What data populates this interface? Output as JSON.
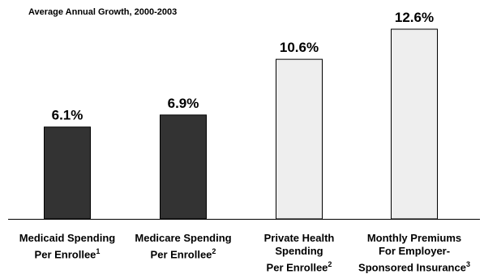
{
  "chart_data": {
    "type": "bar",
    "subtitle": "Average Annual Growth, 2000-2003",
    "categories": [
      {
        "lines": [
          "Medicaid Spending",
          "Per Enrollee"
        ],
        "sup": "1"
      },
      {
        "lines": [
          "Medicare Spending",
          "Per Enrollee"
        ],
        "sup": "2"
      },
      {
        "lines": [
          "Private Health",
          "Spending",
          "Per Enrollee"
        ],
        "sup": "2"
      },
      {
        "lines": [
          "Monthly Premiums",
          "For Employer-",
          "Sponsored Insurance"
        ],
        "sup": "3"
      }
    ],
    "values": [
      6.1,
      6.9,
      10.6,
      12.6
    ],
    "value_labels": [
      "6.1%",
      "6.9%",
      "10.6%",
      "12.6%"
    ],
    "colors": [
      "#333333",
      "#333333",
      "#eeeeee",
      "#eeeeee"
    ],
    "ylim": [
      0,
      12.6
    ],
    "grid": false,
    "legend": "none"
  }
}
